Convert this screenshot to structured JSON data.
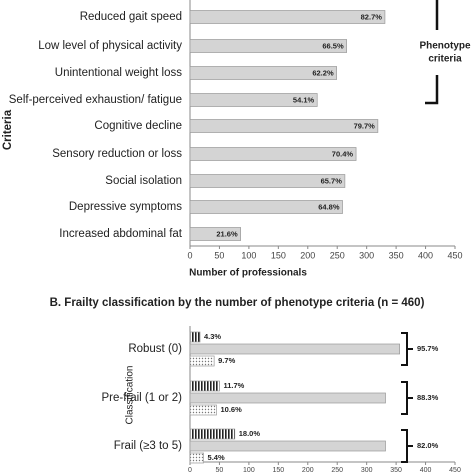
{
  "chart_data": [
    {
      "type": "hbar",
      "y_label": "Criteria",
      "x_label": "Number of professionals",
      "categories": [
        "Reduced gait speed",
        "Low level of physical activity",
        "Unintentional weight loss",
        "Self-perceived exhaustion/ fatigue",
        "Cognitive decline",
        "Sensory reduction or loss",
        "Social isolation",
        "Depressive symptoms",
        "Increased abdominal fat"
      ],
      "values": [
        331,
        266,
        249,
        216,
        319,
        282,
        263,
        259,
        86
      ],
      "percent_labels": [
        "82.7%",
        "66.5%",
        "62.2%",
        "54.1%",
        "79.7%",
        "70.4%",
        "65.7%",
        "64.8%",
        "21.6%"
      ],
      "color": "#d4d4d4",
      "xlim": [
        0,
        450
      ],
      "xticks": [
        0,
        50,
        100,
        150,
        200,
        250,
        300,
        350,
        400,
        450
      ],
      "annotation": [
        "Phenotype",
        "criteria"
      ]
    },
    {
      "type": "grouped-hbar",
      "title": "B. Frailty classification by the number of phenotype criteria (n = 460)",
      "y_label": "Classification",
      "categories": [
        "Robust (0)",
        "Pre-frail (1  or 2)",
        "Frail (≥3 to 5)"
      ],
      "series": [
        {
          "pattern": "stripes",
          "color": "#222222",
          "values": [
            17,
            50,
            76
          ],
          "percent_labels": [
            "4.3%",
            "11.7%",
            "18.0%"
          ]
        },
        {
          "pattern": "solid",
          "color": "#d4d4d4",
          "values": [
            356,
            332,
            332
          ]
        },
        {
          "pattern": "dots",
          "color": "#777777",
          "values": [
            41,
            45,
            23
          ],
          "percent_labels": [
            "9.7%",
            "10.6%",
            "5.4%"
          ]
        }
      ],
      "bracket_labels": [
        "95.7%",
        "88.3%",
        "82.0%"
      ],
      "xlim": [
        0,
        450
      ],
      "xticks": [
        0,
        50,
        100,
        150,
        200,
        250,
        300,
        350,
        400,
        450
      ]
    }
  ]
}
